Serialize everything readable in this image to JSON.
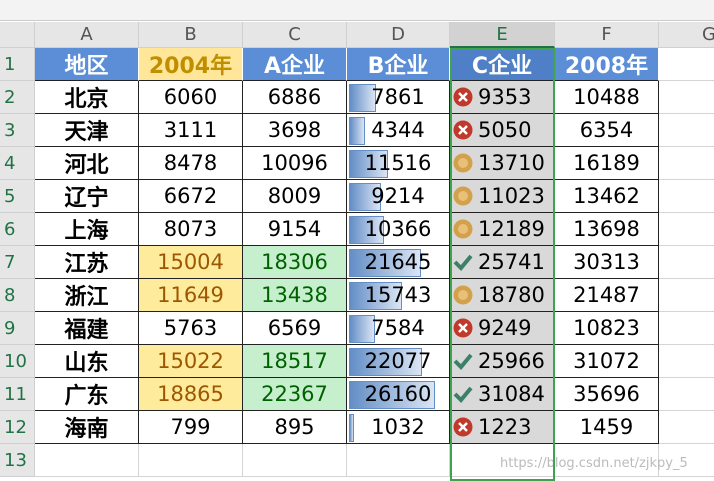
{
  "column_letters": [
    "A",
    "B",
    "C",
    "D",
    "E",
    "F",
    "G"
  ],
  "row_numbers": [
    "1",
    "2",
    "3",
    "4",
    "5",
    "6",
    "7",
    "8",
    "9",
    "10",
    "11",
    "12",
    "13"
  ],
  "header": [
    "地区",
    "2004年",
    "A企业",
    "B企业",
    "C企业",
    "2008年"
  ],
  "rows": [
    [
      "北京",
      6060,
      6886,
      7861,
      9353,
      10488
    ],
    [
      "天津",
      3111,
      3698,
      4344,
      5050,
      6354
    ],
    [
      "河北",
      8478,
      10096,
      11516,
      13710,
      16189
    ],
    [
      "辽宁",
      6672,
      8009,
      9214,
      11023,
      13462
    ],
    [
      "上海",
      8073,
      9154,
      10366,
      12189,
      13698
    ],
    [
      "江苏",
      15004,
      18306,
      21645,
      25741,
      30313
    ],
    [
      "浙江",
      11649,
      13438,
      15743,
      18780,
      21487
    ],
    [
      "福建",
      5763,
      6569,
      7584,
      9249,
      10823
    ],
    [
      "山东",
      15022,
      18517,
      22077,
      25966,
      31072
    ],
    [
      "广东",
      18865,
      22367,
      26160,
      31084,
      35696
    ],
    [
      "海南",
      799,
      895,
      1032,
      1223,
      1459
    ]
  ],
  "highlight": [
    false,
    false,
    false,
    false,
    false,
    true,
    true,
    false,
    true,
    true,
    false
  ],
  "icons": [
    "cross",
    "cross",
    "circle",
    "circle",
    "circle",
    "check",
    "circle",
    "cross",
    "check",
    "check",
    "cross"
  ],
  "watermark": "https://blog.csdn.net/zjkpy_5"
}
